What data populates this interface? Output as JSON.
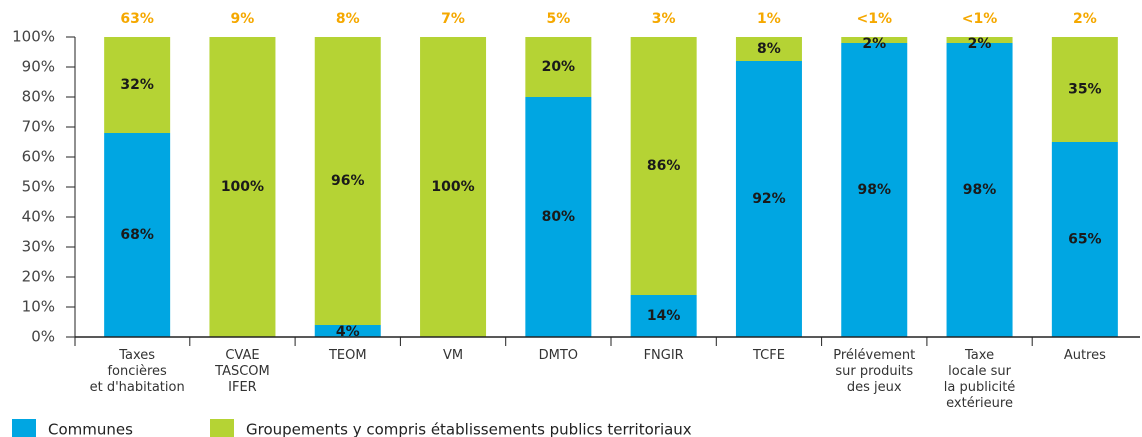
{
  "chart_data": {
    "type": "stacked_bar",
    "categories": [
      [
        "Taxes",
        "foncières",
        "et d'habitation"
      ],
      [
        "CVAE",
        "TASCOM",
        "IFER"
      ],
      [
        "TEOM"
      ],
      [
        "VM"
      ],
      [
        "DMTO"
      ],
      [
        "FNGIR"
      ],
      [
        "TCFE"
      ],
      [
        "Prélévement",
        "sur produits",
        "des jeux"
      ],
      [
        "Taxe",
        "locale sur",
        "la publicité",
        "extérieure"
      ],
      [
        "Autres"
      ]
    ],
    "share_labels": [
      "63%",
      "9%",
      "8%",
      "7%",
      "5%",
      "3%",
      "1%",
      "<1%",
      "<1%",
      "2%"
    ],
    "series": [
      {
        "name": "Communes",
        "color": "#00a6e2",
        "values": [
          68,
          0,
          4,
          0,
          80,
          14,
          92,
          98,
          98,
          65
        ],
        "value_labels": [
          "68%",
          null,
          "4%",
          null,
          "80%",
          "14%",
          "92%",
          "98%",
          "98%",
          "65%"
        ]
      },
      {
        "name": "Groupements y compris établissements publics territoriaux",
        "color": "#b5d334",
        "values": [
          32,
          100,
          96,
          100,
          20,
          86,
          8,
          2,
          2,
          35
        ],
        "value_labels": [
          "32%",
          "100%",
          "96%",
          "100%",
          "20%",
          "86%",
          "8%",
          "2%",
          "2%",
          "35%"
        ]
      }
    ],
    "ylim": [
      0,
      100
    ],
    "yticks": [
      {
        "value": 0,
        "label": "0%"
      },
      {
        "value": 10,
        "label": "10%"
      },
      {
        "value": 20,
        "label": "20%"
      },
      {
        "value": 30,
        "label": "30%"
      },
      {
        "value": 40,
        "label": "40%"
      },
      {
        "value": 50,
        "label": "50%"
      },
      {
        "value": 60,
        "label": "60%"
      },
      {
        "value": 70,
        "label": "70%"
      },
      {
        "value": 80,
        "label": "80%"
      },
      {
        "value": 90,
        "label": "90%"
      },
      {
        "value": 100,
        "label": "100%"
      }
    ]
  }
}
